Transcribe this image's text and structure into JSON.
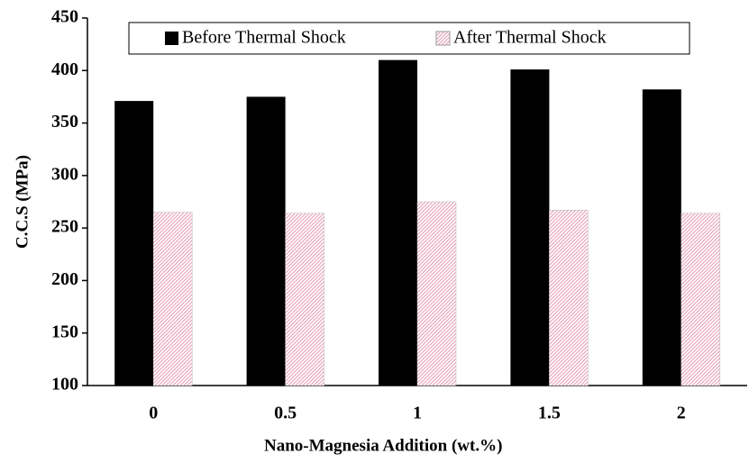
{
  "chart_data": {
    "type": "bar",
    "categories": [
      "0",
      "0.5",
      "1",
      "1.5",
      "2"
    ],
    "series": [
      {
        "name": "Before Thermal Shock",
        "color": "#000000",
        "values": [
          371,
          375,
          410,
          401,
          382
        ]
      },
      {
        "name": "After Thermal Shock",
        "color": "#e8a8bc",
        "values": [
          265,
          264,
          275,
          267,
          264
        ]
      }
    ],
    "xlabel": "Nano-Magnesia Addition (wt.%)",
    "ylabel": "C.C.S (MPa)",
    "ylim": [
      100,
      450
    ],
    "yticks": [
      100,
      150,
      200,
      250,
      300,
      350,
      400,
      450
    ],
    "legend": "top"
  }
}
